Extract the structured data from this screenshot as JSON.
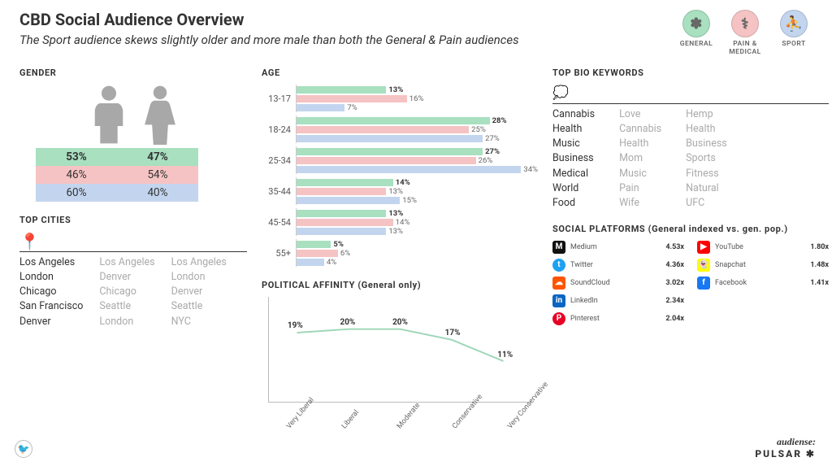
{
  "header": {
    "title": "CBD Social Audience Overview",
    "subtitle": "The Sport audience skews slightly older and more male than both the General & Pain audiences"
  },
  "legend": [
    {
      "label": "GENERAL",
      "color": "#a8e0c0",
      "icon": "✽"
    },
    {
      "label": "PAIN & MEDICAL",
      "color": "#f5c3c3",
      "icon": "⚕"
    },
    {
      "label": "SPORT",
      "color": "#c3d5ee",
      "icon": "⛹"
    }
  ],
  "colors": {
    "general": "#a8e0c0",
    "pain": "#f5c3c3",
    "sport": "#c3d5ee",
    "silhouette": "#a8a8a8",
    "text_muted": "#aaaaaa"
  },
  "gender": {
    "title": "GENDER",
    "rows": [
      {
        "male": "53%",
        "female": "47%",
        "bg": "#a8e0c0",
        "bold": true
      },
      {
        "male": "46%",
        "female": "54%",
        "bg": "#f5c3c3",
        "bold": false
      },
      {
        "male": "60%",
        "female": "40%",
        "bg": "#c3d5ee",
        "bold": false
      }
    ]
  },
  "age": {
    "title": "AGE",
    "max_pct": 35,
    "groups": [
      {
        "label": "13-17",
        "values": [
          13,
          16,
          7
        ],
        "bold_index": 0
      },
      {
        "label": "18-24",
        "values": [
          28,
          25,
          27
        ],
        "bold_index": 0
      },
      {
        "label": "25-34",
        "values": [
          27,
          26,
          34
        ],
        "bold_index": 0
      },
      {
        "label": "35-44",
        "values": [
          14,
          13,
          15
        ],
        "bold_index": 0
      },
      {
        "label": "45-54",
        "values": [
          13,
          14,
          13
        ],
        "bold_index": 0
      },
      {
        "label": "55+",
        "values": [
          5,
          6,
          4
        ],
        "bold_index": 0
      }
    ],
    "bar_colors": [
      "#a8e0c0",
      "#f5c3c3",
      "#c3d5ee"
    ]
  },
  "bio": {
    "title": "TOP BIO KEYWORDS",
    "columns": [
      [
        "Cannabis",
        "Health",
        "Music",
        "Business",
        "Medical",
        "World",
        "Food"
      ],
      [
        "Love",
        "Cannabis",
        "Health",
        "Mom",
        "Music",
        "Pain",
        "Wife"
      ],
      [
        "Hemp",
        "Health",
        "Business",
        "Sports",
        "Fitness",
        "Natural",
        "UFC"
      ]
    ]
  },
  "cities": {
    "title": "TOP CITIES",
    "columns": [
      [
        "Los Angeles",
        "London",
        "Chicago",
        "San Francisco",
        "Denver"
      ],
      [
        "Los Angeles",
        "Denver",
        "Chicago",
        "Seattle",
        "London"
      ],
      [
        "Los Angeles",
        "London",
        "Denver",
        "Seattle",
        "NYC"
      ]
    ]
  },
  "political": {
    "title": "POLITICAL AFFINITY (General only)",
    "categories": [
      "Very Liberal",
      "Liberal",
      "Moderate",
      "Conservative",
      "Very Conservative"
    ],
    "values": [
      19,
      20,
      20,
      17,
      11
    ],
    "ymax": 25,
    "line_color": "#9ed6b8"
  },
  "social": {
    "title": "SOCIAL PLATFORMS (General indexed vs. gen. pop.)",
    "items": [
      {
        "name": "Medium",
        "value": "4.53x",
        "color": "#12100e",
        "glyph": "M"
      },
      {
        "name": "YouTube",
        "value": "1.80x",
        "color": "#ff0000",
        "glyph": "▶"
      },
      {
        "name": "Twitter",
        "value": "4.36x",
        "color": "#1da1f2",
        "glyph": "t"
      },
      {
        "name": "Snapchat",
        "value": "1.48x",
        "color": "#fffc00",
        "glyph": "👻"
      },
      {
        "name": "SoundCloud",
        "value": "3.02x",
        "color": "#ff5500",
        "glyph": "☁"
      },
      {
        "name": "Facebook",
        "value": "1.41x",
        "color": "#1877f2",
        "glyph": "f"
      },
      {
        "name": "LinkedIn",
        "value": "2.34x",
        "color": "#0a66c2",
        "glyph": "in"
      },
      {
        "name": "",
        "value": "",
        "color": "",
        "glyph": ""
      },
      {
        "name": "Pinterest",
        "value": "2.04x",
        "color": "#e60023",
        "glyph": "P"
      }
    ]
  },
  "footer": {
    "audiense": "audiense:",
    "pulsar": "PULSAR ✱"
  }
}
